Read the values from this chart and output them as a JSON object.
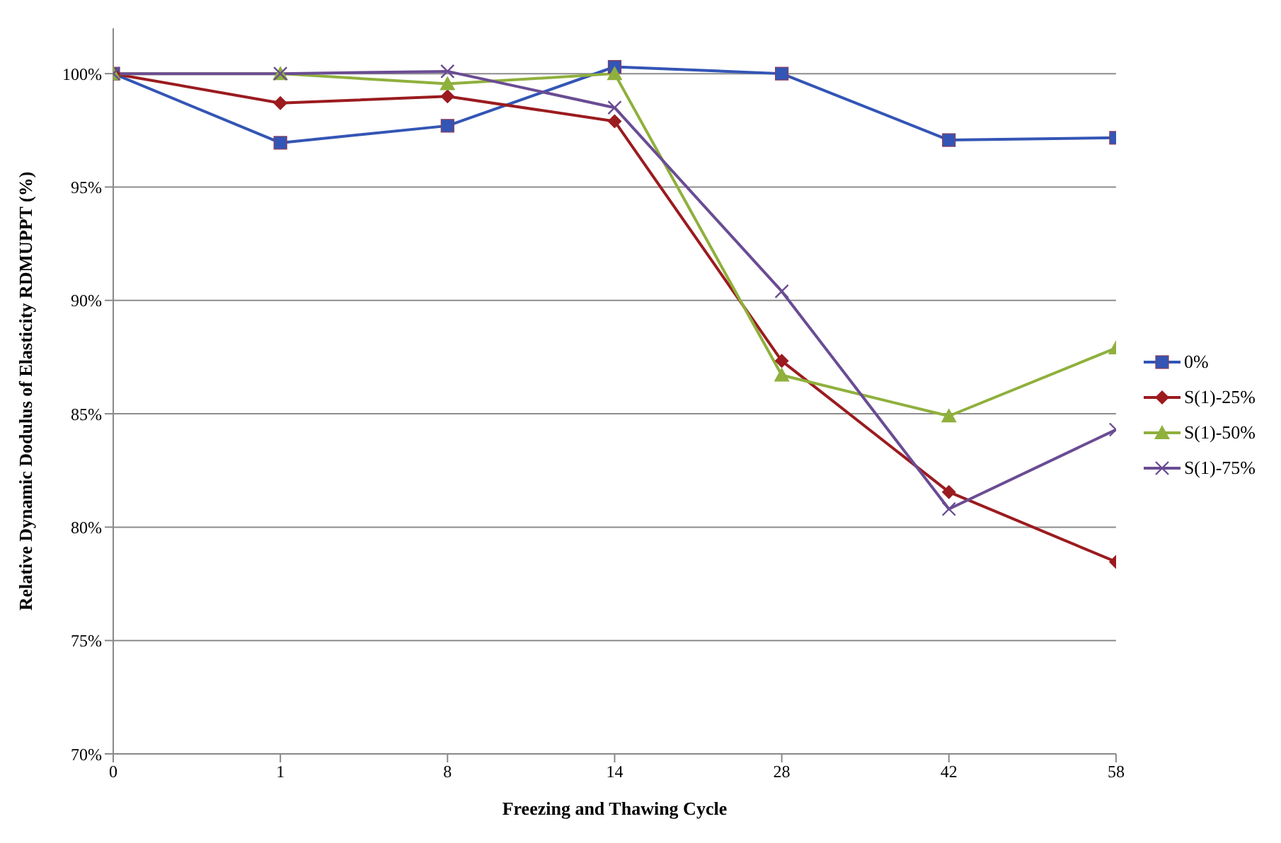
{
  "chart_data": {
    "type": "line",
    "xlabel": "Freezing and Thawing Cycle",
    "ylabel": "Relative Dynamic Dodulus of Elasticity RDMUPPT  (%)",
    "categories": [
      "0",
      "1",
      "8",
      "14",
      "28",
      "42",
      "58"
    ],
    "series": [
      {
        "name": "0%",
        "color": "#3355b5",
        "marker": "square",
        "values": [
          100,
          96.95,
          97.7,
          100.3,
          100,
          97.07,
          97.17
        ]
      },
      {
        "name": "S(1)-25%",
        "color": "#9b1b1f",
        "marker": "diamond",
        "values": [
          100,
          98.7,
          99.0,
          97.9,
          87.33,
          81.55,
          78.47
        ]
      },
      {
        "name": "S(1)-50%",
        "color": "#8fb03c",
        "marker": "triangle",
        "values": [
          100,
          100,
          99.55,
          100,
          86.7,
          84.9,
          87.9
        ]
      },
      {
        "name": "S(1)-75%",
        "color": "#6a4c93",
        "marker": "cross",
        "values": [
          100,
          100,
          100.1,
          98.5,
          90.4,
          80.8,
          84.3
        ]
      }
    ],
    "ylim": [
      70,
      102
    ],
    "yticks": [
      {
        "value": 70,
        "label": "70%"
      },
      {
        "value": 75,
        "label": "75%"
      },
      {
        "value": 80,
        "label": "80%"
      },
      {
        "value": 85,
        "label": "85%"
      },
      {
        "value": 90,
        "label": "90%"
      },
      {
        "value": 95,
        "label": "95%"
      },
      {
        "value": 100,
        "label": "100%"
      }
    ],
    "grid": "y",
    "legend": "right",
    "line_style": "solid"
  }
}
